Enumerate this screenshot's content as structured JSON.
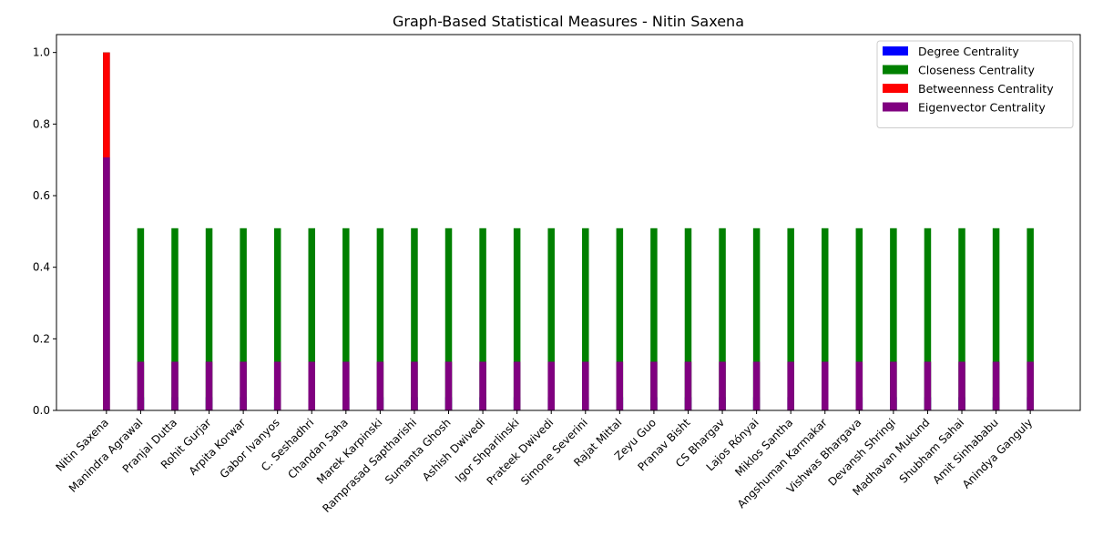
{
  "chart_data": {
    "type": "bar",
    "title": "Graph-Based Statistical Measures - Nitin Saxena",
    "xlabel": "",
    "ylabel": "",
    "ylim": [
      0,
      1.05
    ],
    "yticks": [
      0.0,
      0.2,
      0.4,
      0.6,
      0.8,
      1.0
    ],
    "ytick_labels": [
      "0.0",
      "0.2",
      "0.4",
      "0.6",
      "0.8",
      "1.0"
    ],
    "legend_position": "top-right",
    "categories": [
      "Nitin Saxena",
      "Manindra Agrawal",
      "Pranjal Dutta",
      "Rohit Gurjar",
      "Arpita Korwar",
      "Gabor Ivanyos",
      "C. Seshadhri",
      "Chandan Saha",
      "Marek Karpinski",
      "Ramprasad Saptharishi",
      "Sumanta Ghosh",
      "Ashish Dwivedi",
      "Igor Shparlinski",
      "Prateek Dwivedi",
      "Simone Severini",
      "Rajat Mittal",
      "Zeyu Guo",
      "Pranav Bisht",
      "CS Bhargav",
      "Lajos Rónyai",
      "Miklos Santha",
      "Angshuman Karmakar",
      "Vishwas Bhargava",
      "Devansh Shringi",
      "Madhavan Mukund",
      "Shubham Sahai",
      "Amit  Sinhababu",
      "Anindya Ganguly"
    ],
    "series": [
      {
        "name": "Degree Centrality",
        "color": "#0000ff",
        "values": [
          1.0,
          0.037,
          0.037,
          0.037,
          0.037,
          0.037,
          0.037,
          0.037,
          0.037,
          0.037,
          0.037,
          0.037,
          0.037,
          0.037,
          0.037,
          0.037,
          0.037,
          0.037,
          0.037,
          0.037,
          0.037,
          0.037,
          0.037,
          0.037,
          0.037,
          0.037,
          0.037,
          0.037
        ]
      },
      {
        "name": "Closeness Centrality",
        "color": "#008000",
        "values": [
          1.0,
          0.509,
          0.509,
          0.509,
          0.509,
          0.509,
          0.509,
          0.509,
          0.509,
          0.509,
          0.509,
          0.509,
          0.509,
          0.509,
          0.509,
          0.509,
          0.509,
          0.509,
          0.509,
          0.509,
          0.509,
          0.509,
          0.509,
          0.509,
          0.509,
          0.509,
          0.509,
          0.509
        ]
      },
      {
        "name": "Betweenness Centrality",
        "color": "#ff0000",
        "values": [
          1.0,
          0.0,
          0.0,
          0.0,
          0.0,
          0.0,
          0.0,
          0.0,
          0.0,
          0.0,
          0.0,
          0.0,
          0.0,
          0.0,
          0.0,
          0.0,
          0.0,
          0.0,
          0.0,
          0.0,
          0.0,
          0.0,
          0.0,
          0.0,
          0.0,
          0.0,
          0.0,
          0.0
        ]
      },
      {
        "name": "Eigenvector Centrality",
        "color": "#800080",
        "values": [
          0.707,
          0.136,
          0.136,
          0.136,
          0.136,
          0.136,
          0.136,
          0.136,
          0.136,
          0.136,
          0.136,
          0.136,
          0.136,
          0.136,
          0.136,
          0.136,
          0.136,
          0.136,
          0.136,
          0.136,
          0.136,
          0.136,
          0.136,
          0.136,
          0.136,
          0.136,
          0.136,
          0.136
        ]
      }
    ]
  }
}
